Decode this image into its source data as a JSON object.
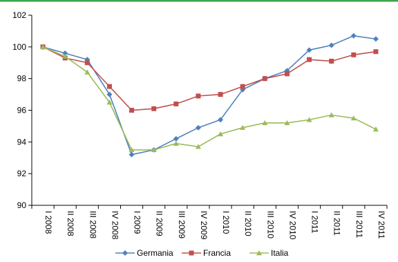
{
  "top_rule_color": "#3aa64b",
  "chart_data": {
    "type": "line",
    "categories": [
      "I 2008",
      "II 2008",
      "III 2008",
      "IV 2008",
      "I 2009",
      "II 2009",
      "III 2009",
      "IV 2009",
      "I 2010",
      "II 2010",
      "III 2010",
      "IV 2010",
      "I 2011",
      "II 2011",
      "III 2011",
      "IV 2011"
    ],
    "ylim": [
      90,
      102
    ],
    "yticks": [
      90,
      92,
      94,
      96,
      98,
      100,
      102
    ],
    "grid": false,
    "legend_position": "bottom",
    "series": [
      {
        "name": "Germania",
        "color": "#4f81bd",
        "marker": "diamond",
        "values": [
          100,
          99.6,
          99.2,
          97.0,
          93.2,
          93.5,
          94.2,
          94.9,
          95.4,
          97.3,
          98.0,
          98.5,
          99.8,
          100.1,
          100.7,
          100.5
        ]
      },
      {
        "name": "Francia",
        "color": "#c0504d",
        "marker": "square",
        "values": [
          100,
          99.3,
          99.0,
          97.5,
          96.0,
          96.1,
          96.4,
          96.9,
          97.0,
          97.5,
          98.0,
          98.3,
          99.2,
          99.1,
          99.5,
          99.7
        ]
      },
      {
        "name": "Italia",
        "color": "#9bbb59",
        "marker": "triangle",
        "values": [
          100,
          99.4,
          98.4,
          96.5,
          93.5,
          93.5,
          93.9,
          93.7,
          94.5,
          94.9,
          95.2,
          95.2,
          95.4,
          95.7,
          95.5,
          94.8
        ]
      }
    ]
  }
}
